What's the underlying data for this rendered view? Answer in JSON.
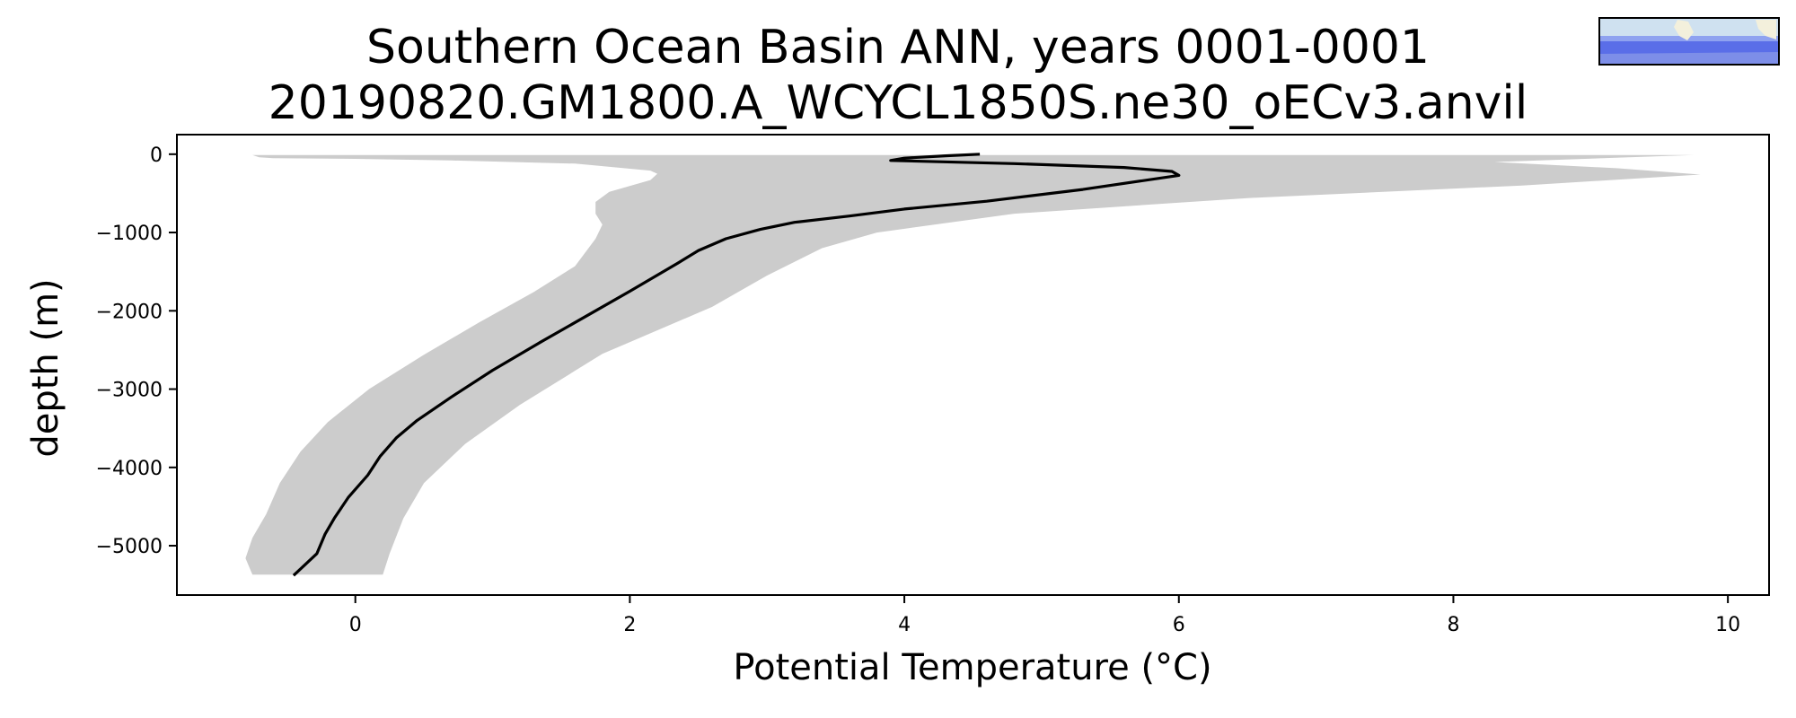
{
  "chart_data": {
    "type": "line",
    "title": "Southern Ocean Basin ANN, years 0001-0001",
    "subtitle": "20190820.GM1800.A_WCYCL1850S.ne30_oECv3.anvil",
    "xlabel": "Potential Temperature (°C)",
    "ylabel": "depth (m)",
    "xlim": [
      -1.3,
      10.3
    ],
    "ylim": [
      -5630,
      250
    ],
    "xticks": [
      0,
      2,
      4,
      6,
      8,
      10
    ],
    "yticks": [
      0,
      -1000,
      -2000,
      -3000,
      -4000,
      -5000
    ],
    "xtick_labels": [
      "0",
      "2",
      "4",
      "6",
      "8",
      "10"
    ],
    "ytick_labels": [
      "0",
      "−1000",
      "−2000",
      "−3000",
      "−4000",
      "−5000"
    ],
    "grid": false,
    "series": [
      {
        "kind": "line",
        "color": "#000000",
        "points": [
          [
            4.55,
            0
          ],
          [
            4.3,
            -20
          ],
          [
            4.0,
            -50
          ],
          [
            3.9,
            -80
          ],
          [
            4.8,
            -120
          ],
          [
            5.6,
            -170
          ],
          [
            5.95,
            -220
          ],
          [
            6.0,
            -270
          ],
          [
            5.3,
            -450
          ],
          [
            4.6,
            -600
          ],
          [
            4.0,
            -700
          ],
          [
            3.6,
            -790
          ],
          [
            3.2,
            -870
          ],
          [
            2.95,
            -960
          ],
          [
            2.7,
            -1080
          ],
          [
            2.5,
            -1230
          ],
          [
            2.35,
            -1390
          ],
          [
            2.0,
            -1750
          ],
          [
            1.7,
            -2050
          ],
          [
            1.35,
            -2400
          ],
          [
            1.0,
            -2760
          ],
          [
            0.7,
            -3100
          ],
          [
            0.45,
            -3400
          ],
          [
            0.3,
            -3620
          ],
          [
            0.18,
            -3860
          ],
          [
            0.09,
            -4100
          ],
          [
            -0.05,
            -4380
          ],
          [
            -0.15,
            -4640
          ],
          [
            -0.22,
            -4850
          ],
          [
            -0.28,
            -5100
          ],
          [
            -0.45,
            -5380
          ]
        ]
      }
    ],
    "band": {
      "color": "#cccccc",
      "left": [
        [
          -0.75,
          -10
        ],
        [
          -0.7,
          -40
        ],
        [
          -0.6,
          -50
        ],
        [
          0.0,
          -60
        ],
        [
          0.7,
          -80
        ],
        [
          1.6,
          -120
        ],
        [
          2.15,
          -210
        ],
        [
          2.2,
          -250
        ],
        [
          2.15,
          -330
        ],
        [
          1.85,
          -480
        ],
        [
          1.75,
          -610
        ],
        [
          1.75,
          -760
        ],
        [
          1.8,
          -900
        ],
        [
          1.75,
          -1080
        ],
        [
          1.6,
          -1430
        ],
        [
          1.3,
          -1760
        ],
        [
          0.9,
          -2150
        ],
        [
          0.5,
          -2560
        ],
        [
          0.1,
          -3000
        ],
        [
          -0.2,
          -3420
        ],
        [
          -0.4,
          -3800
        ],
        [
          -0.55,
          -4200
        ],
        [
          -0.65,
          -4600
        ],
        [
          -0.75,
          -4900
        ],
        [
          -0.8,
          -5160
        ],
        [
          -0.75,
          -5370
        ]
      ],
      "right": [
        [
          9.75,
          -10
        ],
        [
          8.3,
          -100
        ],
        [
          9.2,
          -180
        ],
        [
          9.8,
          -260
        ],
        [
          8.5,
          -400
        ],
        [
          6.5,
          -560
        ],
        [
          4.8,
          -760
        ],
        [
          3.8,
          -1000
        ],
        [
          3.4,
          -1200
        ],
        [
          3.0,
          -1550
        ],
        [
          2.6,
          -1950
        ],
        [
          1.8,
          -2550
        ],
        [
          1.2,
          -3200
        ],
        [
          0.8,
          -3700
        ],
        [
          0.5,
          -4200
        ],
        [
          0.35,
          -4650
        ],
        [
          0.25,
          -5100
        ],
        [
          0.2,
          -5370
        ]
      ]
    },
    "inset_map": {
      "description_icon": "basin-map-icon",
      "ocean_color": "#5a6ee8",
      "highlight_color": "#8fa2f0",
      "land_color": "#f3f0dc",
      "border_color": "#000000"
    }
  }
}
